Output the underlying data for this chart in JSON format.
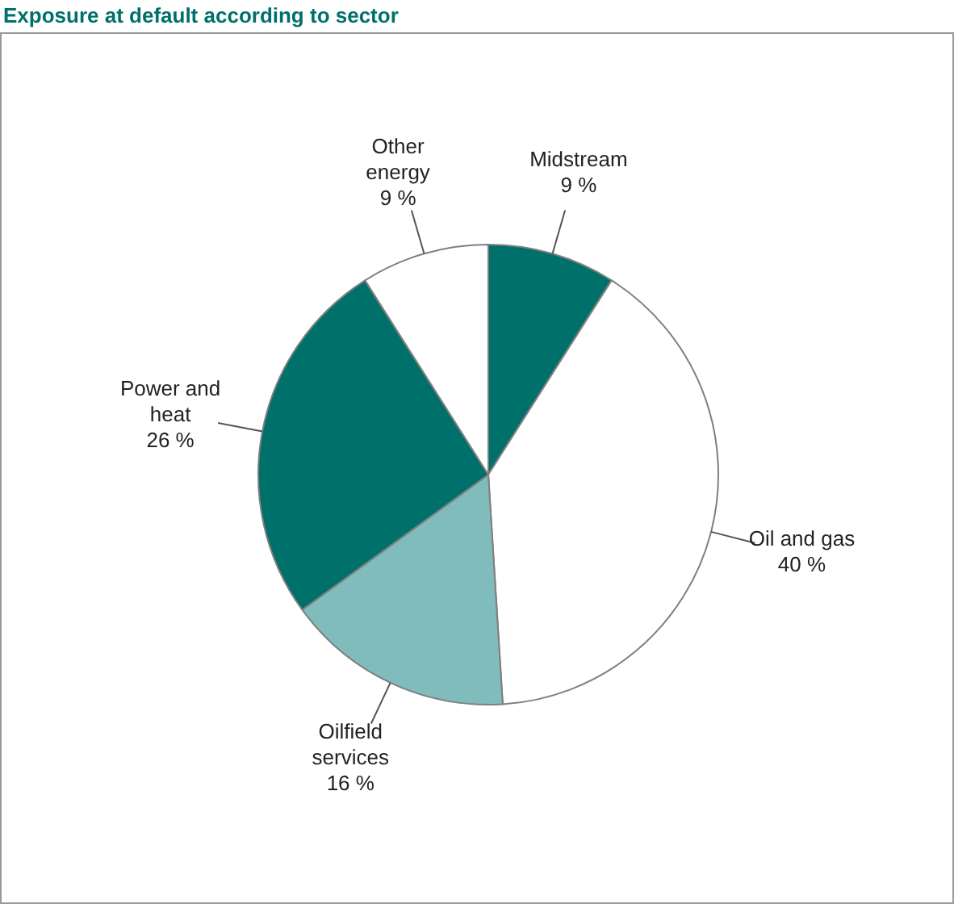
{
  "chart_data": {
    "type": "pie",
    "title": "Exposure at default according to sector",
    "categories": [
      "Midstream",
      "Oil and gas",
      "Oilfield services",
      "Power and heat",
      "Other energy"
    ],
    "values": [
      9,
      40,
      16,
      26,
      9
    ],
    "value_labels": [
      "9 %",
      "40 %",
      "16 %",
      "26 %",
      "9 %"
    ],
    "colors": [
      "#00706b",
      "#ffffff",
      "#80bcbc",
      "#00706b",
      "#ffffff"
    ],
    "legend": false
  }
}
